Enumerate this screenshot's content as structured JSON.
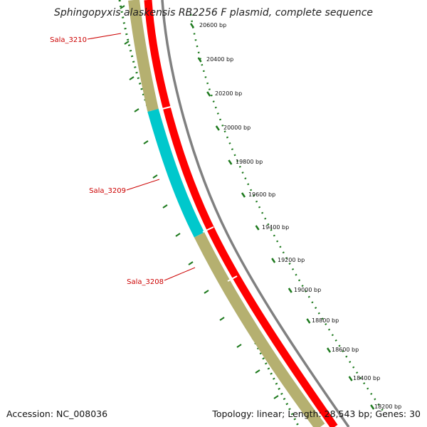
{
  "title": "Sphingopyxis alaskensis RB2256 F plasmid, complete sequence",
  "accession": "Accession: NC_008036",
  "summary": "Topology: linear; Length: 28,543 bp; Genes: 30",
  "colors": {
    "cds": "#ff0000",
    "gene_olive": "#b5b070",
    "gene_cyan": "#00c8cc",
    "backbone": "#808080",
    "tick": "#1e7a1e",
    "label": "#cc0000"
  },
  "genes": [
    {
      "name": "Sala_3210",
      "color": "olive"
    },
    {
      "name": "Sala_3209",
      "color": "cyan"
    },
    {
      "name": "Sala_3208",
      "color": "olive"
    }
  ],
  "bp_ticks": [
    {
      "label": "20600 bp"
    },
    {
      "label": "20400 bp"
    },
    {
      "label": "20200 bp"
    },
    {
      "label": "20000 bp"
    },
    {
      "label": "19800 bp"
    },
    {
      "label": "19600 bp"
    },
    {
      "label": "19400 bp"
    },
    {
      "label": "19200 bp"
    },
    {
      "label": "19000 bp"
    },
    {
      "label": "18800 bp"
    },
    {
      "label": "18600 bp"
    },
    {
      "label": "18400 bp"
    },
    {
      "label": "18200 bp"
    }
  ]
}
